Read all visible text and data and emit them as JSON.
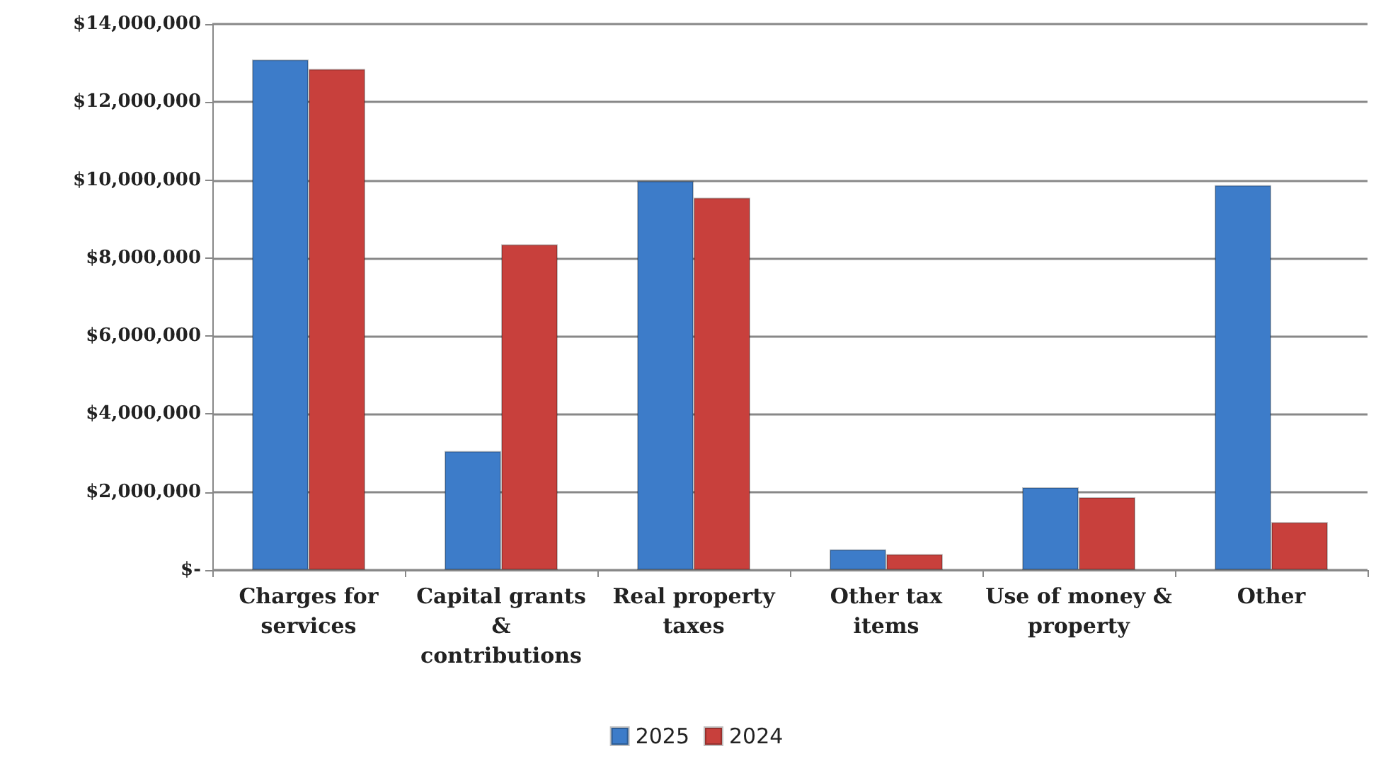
{
  "chart_data": {
    "type": "bar",
    "categories": [
      "Charges for services",
      "Capital grants & contributions",
      "Real property taxes",
      "Other tax items",
      "Use of money & property",
      "Other"
    ],
    "series": [
      {
        "name": "2025",
        "color": "#3d7cc9",
        "values": [
          13090000,
          3050000,
          9980000,
          530000,
          2120000,
          9870000
        ]
      },
      {
        "name": "2024",
        "color": "#c8403c",
        "values": [
          12850000,
          8350000,
          9550000,
          410000,
          1870000,
          1230000
        ]
      }
    ],
    "ylim": [
      0,
      14000000
    ],
    "yticks": [
      {
        "value": 0,
        "label": "$-"
      },
      {
        "value": 2000000,
        "label": "$2,000,000"
      },
      {
        "value": 4000000,
        "label": "$4,000,000"
      },
      {
        "value": 6000000,
        "label": "$6,000,000"
      },
      {
        "value": 8000000,
        "label": "$8,000,000"
      },
      {
        "value": 10000000,
        "label": "$10,000,000"
      },
      {
        "value": 12000000,
        "label": "$12,000,000"
      },
      {
        "value": 14000000,
        "label": "$14,000,000"
      }
    ],
    "grid": "y",
    "legend": "bottom"
  }
}
